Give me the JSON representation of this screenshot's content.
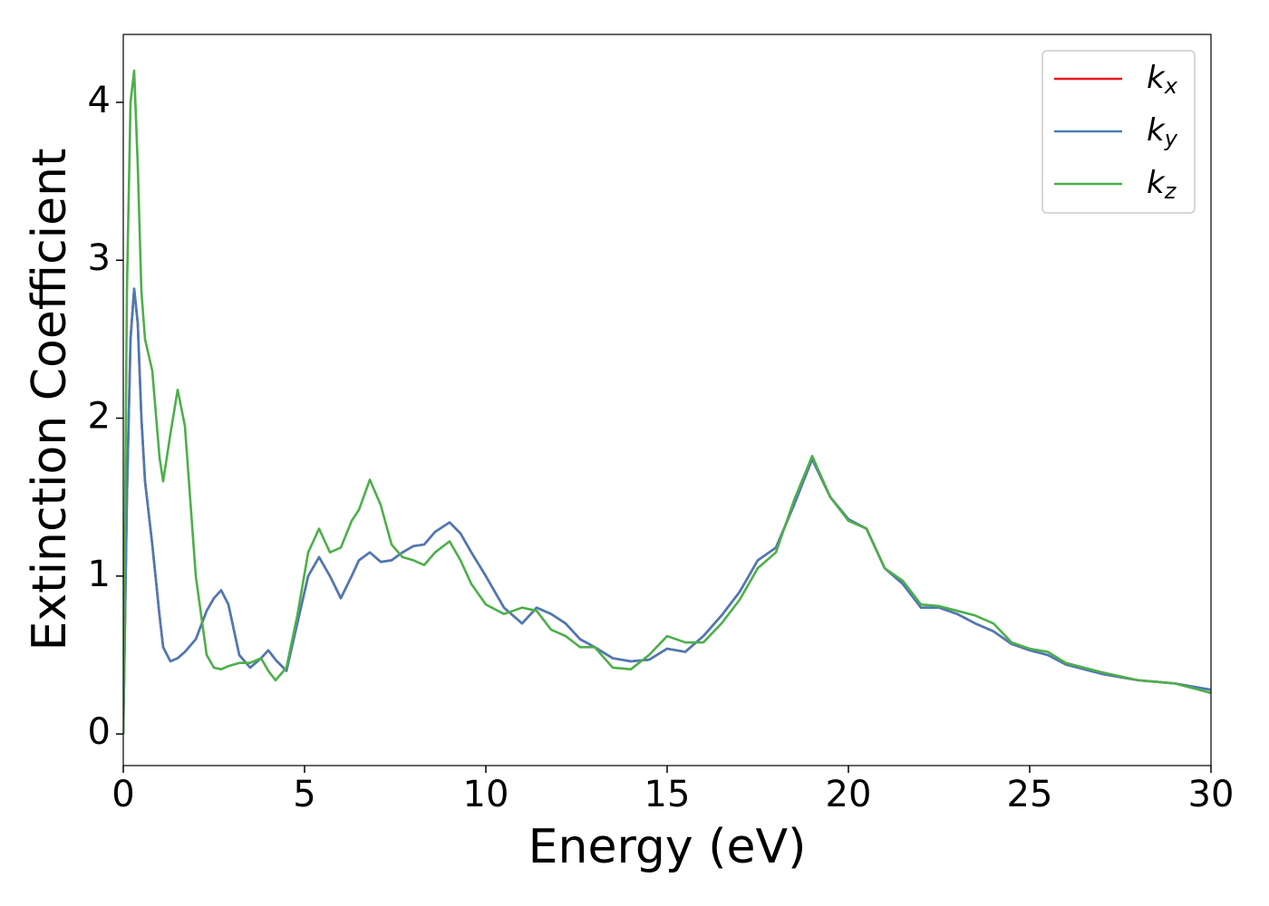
{
  "chart_data": {
    "type": "line",
    "xlabel": "Energy (eV)",
    "ylabel": "Extinction Coefficient",
    "x": [
      0,
      0.1,
      0.2,
      0.3,
      0.4,
      0.5,
      0.6,
      0.8,
      1.0,
      1.1,
      1.3,
      1.5,
      1.7,
      2.0,
      2.3,
      2.5,
      2.7,
      2.9,
      3.2,
      3.5,
      3.8,
      4.0,
      4.2,
      4.5,
      4.8,
      5.1,
      5.4,
      5.7,
      6.0,
      6.3,
      6.5,
      6.8,
      7.1,
      7.4,
      7.7,
      8.0,
      8.3,
      8.6,
      9.0,
      9.3,
      9.6,
      10.0,
      10.5,
      11.0,
      11.4,
      11.8,
      12.2,
      12.6,
      13.0,
      13.5,
      14.0,
      14.5,
      15.0,
      15.5,
      16.0,
      16.5,
      17.0,
      17.5,
      18.0,
      18.5,
      19.0,
      19.5,
      20.0,
      20.5,
      21.0,
      21.5,
      22.0,
      22.5,
      23.0,
      23.5,
      24.0,
      24.5,
      25.0,
      25.5,
      26.0,
      27.0,
      28.0,
      29.0,
      30.0
    ],
    "series": [
      {
        "name": "kx",
        "color": "#e41a1c",
        "values": [
          0,
          1.5,
          2.5,
          2.82,
          2.6,
          2.0,
          1.6,
          1.2,
          0.75,
          0.55,
          0.46,
          0.48,
          0.52,
          0.6,
          0.78,
          0.86,
          0.91,
          0.82,
          0.5,
          0.42,
          0.48,
          0.53,
          0.47,
          0.4,
          0.7,
          1.0,
          1.12,
          1.0,
          0.86,
          1.0,
          1.1,
          1.15,
          1.09,
          1.1,
          1.15,
          1.19,
          1.2,
          1.28,
          1.34,
          1.27,
          1.15,
          1.0,
          0.8,
          0.7,
          0.8,
          0.76,
          0.7,
          0.6,
          0.55,
          0.48,
          0.46,
          0.47,
          0.54,
          0.52,
          0.62,
          0.75,
          0.9,
          1.1,
          1.18,
          1.45,
          1.74,
          1.5,
          1.36,
          1.3,
          1.05,
          0.95,
          0.8,
          0.8,
          0.76,
          0.7,
          0.65,
          0.57,
          0.53,
          0.5,
          0.44,
          0.38,
          0.34,
          0.32,
          0.28
        ]
      },
      {
        "name": "ky",
        "color": "#4a7bb7",
        "values": [
          0,
          1.5,
          2.5,
          2.82,
          2.6,
          2.0,
          1.6,
          1.2,
          0.75,
          0.55,
          0.46,
          0.48,
          0.52,
          0.6,
          0.78,
          0.86,
          0.91,
          0.82,
          0.5,
          0.42,
          0.48,
          0.53,
          0.47,
          0.4,
          0.7,
          1.0,
          1.12,
          1.0,
          0.86,
          1.0,
          1.1,
          1.15,
          1.09,
          1.1,
          1.15,
          1.19,
          1.2,
          1.28,
          1.34,
          1.27,
          1.15,
          1.0,
          0.8,
          0.7,
          0.8,
          0.76,
          0.7,
          0.6,
          0.55,
          0.48,
          0.46,
          0.47,
          0.54,
          0.52,
          0.62,
          0.75,
          0.9,
          1.1,
          1.18,
          1.45,
          1.74,
          1.5,
          1.36,
          1.3,
          1.05,
          0.95,
          0.8,
          0.8,
          0.76,
          0.7,
          0.65,
          0.57,
          0.53,
          0.5,
          0.44,
          0.38,
          0.34,
          0.32,
          0.28
        ]
      },
      {
        "name": "kz",
        "color": "#4daf4a",
        "values": [
          0,
          2.8,
          4.0,
          4.2,
          3.6,
          2.8,
          2.5,
          2.3,
          1.75,
          1.6,
          1.9,
          2.18,
          1.95,
          1.0,
          0.5,
          0.42,
          0.41,
          0.43,
          0.45,
          0.45,
          0.48,
          0.4,
          0.34,
          0.42,
          0.75,
          1.15,
          1.3,
          1.15,
          1.18,
          1.35,
          1.42,
          1.61,
          1.45,
          1.2,
          1.12,
          1.1,
          1.07,
          1.15,
          1.22,
          1.1,
          0.95,
          0.82,
          0.76,
          0.8,
          0.78,
          0.66,
          0.62,
          0.55,
          0.55,
          0.42,
          0.41,
          0.5,
          0.62,
          0.58,
          0.58,
          0.7,
          0.85,
          1.05,
          1.15,
          1.48,
          1.76,
          1.5,
          1.35,
          1.3,
          1.05,
          0.97,
          0.82,
          0.81,
          0.78,
          0.75,
          0.7,
          0.58,
          0.54,
          0.52,
          0.45,
          0.39,
          0.34,
          0.32,
          0.26
        ]
      }
    ],
    "xlim": [
      0,
      30
    ],
    "xticks": [
      0,
      5,
      10,
      15,
      20,
      25,
      30
    ],
    "ylim": [
      -0.2,
      4.43
    ],
    "yticks": [
      0,
      1,
      2,
      3,
      4
    ],
    "grid": false,
    "legend": "upper right"
  }
}
